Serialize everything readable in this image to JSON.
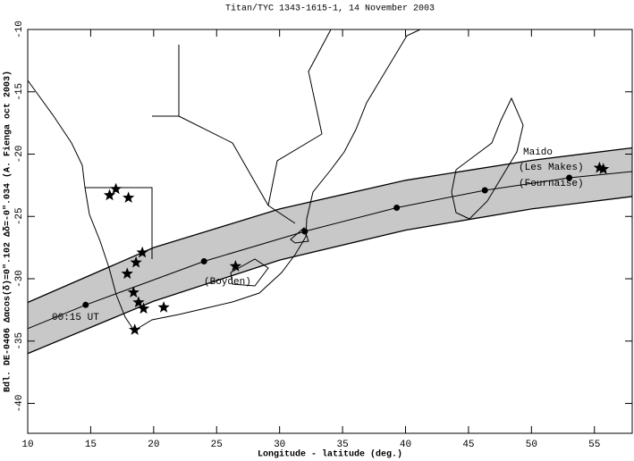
{
  "chart_data": {
    "type": "line",
    "title": "Titan/TYC 1343-1615-1, 14 November 2003",
    "xlabel": "Longitude - latitude (deg.)",
    "ylabel": "Bdl. DE-0406 Δαcos(δ)=0\".102 Δδ=-0\".034 (A. Fienga oct 2003)",
    "xlim": [
      10,
      58
    ],
    "ylim": [
      -42.4,
      -10
    ],
    "xticks": [
      10,
      15,
      20,
      25,
      30,
      35,
      40,
      45,
      50,
      55
    ],
    "yticks": [
      -10,
      -15,
      -20,
      -25,
      -30,
      -35,
      -40
    ],
    "band_color": "#c8c8c8",
    "series": [
      {
        "color": "#000000",
        "x": [
          10,
          20,
          30,
          40,
          50,
          58
        ],
        "values": [
          -31.9,
          -27.5,
          -24.4,
          -22.1,
          -20.5,
          -19.5
        ]
      },
      {
        "color": "#000000",
        "x": [
          10,
          20,
          30,
          40,
          50,
          58
        ],
        "values": [
          -36,
          -31.8,
          -28.5,
          -26.1,
          -24.4,
          -23.4
        ]
      },
      {
        "color": "#000000",
        "x": [
          10,
          14.6,
          24,
          32,
          39.3,
          46.3,
          53,
          58
        ],
        "values": [
          -34,
          -32.1,
          -28.6,
          -26.2,
          -24.3,
          -22.9,
          -21.9,
          -21.4
        ]
      }
    ],
    "epochs": {
      "color": "#000000",
      "x": [
        14.6,
        24,
        32,
        39.3,
        46.3,
        53
      ],
      "values": [
        -32.1,
        -28.6,
        -26.2,
        -24.3,
        -22.9,
        -21.9
      ]
    },
    "stations": {
      "color": "#000000",
      "x": [
        16.5,
        17,
        18,
        18.6,
        19.1,
        17.9,
        18.4,
        18.8,
        19.2,
        20.8,
        18.5,
        26.5,
        55.4,
        55.7
      ],
      "values": [
        -23.3,
        -22.8,
        -23.5,
        -28.7,
        -27.9,
        -29.6,
        -31.1,
        -31.9,
        -32.4,
        -32.3,
        -34.1,
        -29,
        -21.1,
        -21.2
      ]
    },
    "annotations": [
      "00:15 UT",
      "(Boyden)",
      "Maido",
      "(Les Makes)",
      "(Fournaise)"
    ]
  }
}
